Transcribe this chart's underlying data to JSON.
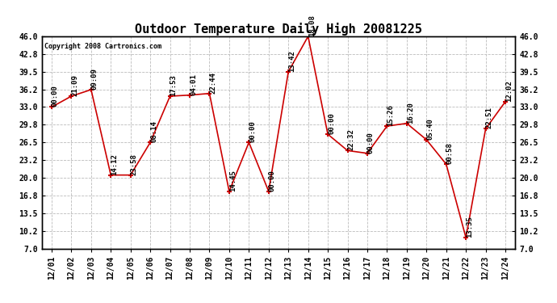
{
  "title": "Outdoor Temperature Daily High 20081225",
  "copyright": "Copyright 2008 Cartronics.com",
  "background_color": "#ffffff",
  "plot_bg_color": "#ffffff",
  "grid_color": "#bbbbbb",
  "line_color": "#cc0000",
  "marker_color": "#cc0000",
  "dates": [
    "12/01",
    "12/02",
    "12/03",
    "12/04",
    "12/05",
    "12/06",
    "12/07",
    "12/08",
    "12/09",
    "12/10",
    "12/11",
    "12/12",
    "12/13",
    "12/14",
    "12/15",
    "12/16",
    "12/17",
    "12/18",
    "12/19",
    "12/20",
    "12/21",
    "12/22",
    "12/23",
    "12/24"
  ],
  "values": [
    33.0,
    35.0,
    36.2,
    20.5,
    20.5,
    26.5,
    35.0,
    35.2,
    35.5,
    17.5,
    26.5,
    17.5,
    39.5,
    46.0,
    28.0,
    25.0,
    24.5,
    29.5,
    30.0,
    27.0,
    22.5,
    9.0,
    29.0,
    34.0
  ],
  "times": [
    "00:00",
    "21:09",
    "09:09",
    "14:12",
    "23:58",
    "08:14",
    "17:53",
    "04:01",
    "22:44",
    "14:45",
    "00:00",
    "00:00",
    "13:42",
    "18:08",
    "00:00",
    "22:32",
    "00:00",
    "15:26",
    "16:20",
    "05:40",
    "00:58",
    "13:35",
    "22:51",
    "12:02"
  ],
  "ylim": [
    7.0,
    46.0
  ],
  "yticks": [
    7.0,
    10.2,
    13.5,
    16.8,
    20.0,
    23.2,
    26.5,
    29.8,
    33.0,
    36.2,
    39.5,
    42.8,
    46.0
  ],
  "title_fontsize": 11,
  "tick_fontsize": 7,
  "annotation_fontsize": 6.5,
  "copyright_fontsize": 6
}
